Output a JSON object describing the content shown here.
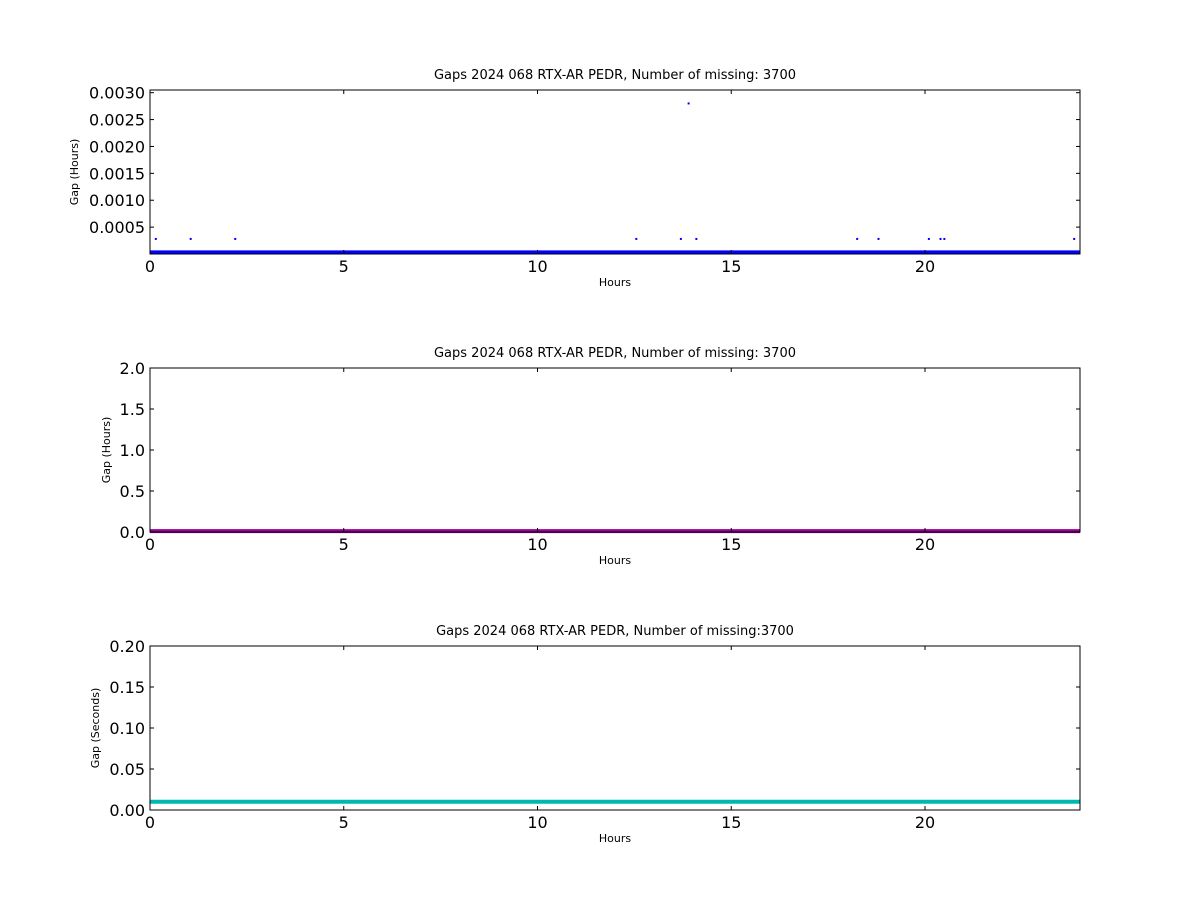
{
  "chart_data": [
    {
      "type": "scatter",
      "title": "Gaps 2024 068 RTX-AR  PEDR, Number of missing: 3700",
      "xlabel": "Hours",
      "ylabel": "Gap (Hours)",
      "xlim": [
        0,
        24
      ],
      "ylim": [
        0,
        0.00305
      ],
      "x_ticks": [
        "0",
        "5",
        "10",
        "15",
        "20"
      ],
      "y_ticks": [
        "0.0005",
        "0.0010",
        "0.0015",
        "0.0020",
        "0.0025",
        "0.0030"
      ],
      "grid": false,
      "series": [
        {
          "color": "#0000ff",
          "baseline": {
            "y": 3e-05,
            "x_range": [
              0,
              24
            ]
          },
          "points": [
            {
              "x": 0.15,
              "y": 0.00028
            },
            {
              "x": 1.05,
              "y": 0.00028
            },
            {
              "x": 2.2,
              "y": 0.00028
            },
            {
              "x": 12.55,
              "y": 0.00028
            },
            {
              "x": 13.7,
              "y": 0.00028
            },
            {
              "x": 13.9,
              "y": 0.0028
            },
            {
              "x": 14.1,
              "y": 0.00028
            },
            {
              "x": 18.25,
              "y": 0.00028
            },
            {
              "x": 18.8,
              "y": 0.00028
            },
            {
              "x": 20.1,
              "y": 0.00028
            },
            {
              "x": 20.4,
              "y": 0.00028
            },
            {
              "x": 20.5,
              "y": 0.00028
            },
            {
              "x": 23.85,
              "y": 0.00028
            }
          ]
        }
      ]
    },
    {
      "type": "line",
      "title": "Gaps 2024 068 RTX-AR  PEDR, Number of missing: 3700",
      "xlabel": "Hours",
      "ylabel": "Gap (Hours)",
      "xlim": [
        0,
        24
      ],
      "ylim": [
        0,
        2.0
      ],
      "x_ticks": [
        "0",
        "5",
        "10",
        "15",
        "20"
      ],
      "y_ticks": [
        "0.0",
        "0.5",
        "1.0",
        "1.5",
        "2.0"
      ],
      "grid": false,
      "series": [
        {
          "color": "#990099",
          "baseline": {
            "y": 0.01,
            "x_range": [
              0,
              24
            ]
          },
          "points": []
        }
      ]
    },
    {
      "type": "line",
      "title": "Gaps 2024 068 RTX-AR  PEDR, Number of missing:3700",
      "xlabel": "Hours",
      "ylabel": "Gap (Seconds)",
      "xlim": [
        0,
        24
      ],
      "ylim": [
        0,
        0.2
      ],
      "x_ticks": [
        "0",
        "5",
        "10",
        "15",
        "20"
      ],
      "y_ticks": [
        "0.00",
        "0.05",
        "0.10",
        "0.15",
        "0.20"
      ],
      "grid": false,
      "series": [
        {
          "color": "#00b8b0",
          "baseline": {
            "y": 0.01,
            "x_range": [
              0,
              24
            ]
          },
          "points": []
        }
      ]
    }
  ]
}
